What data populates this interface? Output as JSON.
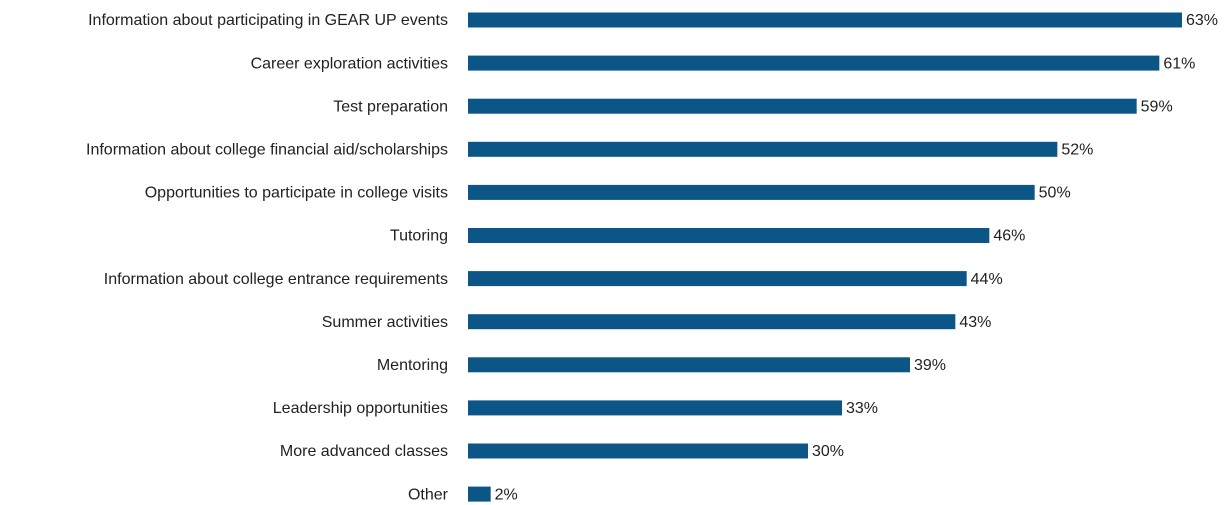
{
  "chart_data": {
    "type": "bar",
    "orientation": "horizontal",
    "categories": [
      "Information about participating in GEAR UP events",
      "Career exploration activities",
      "Test preparation",
      "Information about college financial aid/scholarships",
      "Opportunities to participate in college visits",
      "Tutoring",
      "Information about college entrance requirements",
      "Summer activities",
      "Mentoring",
      "Leadership opportunities",
      "More advanced classes",
      "Other"
    ],
    "values": [
      63,
      61,
      59,
      52,
      50,
      46,
      44,
      43,
      39,
      33,
      30,
      2
    ],
    "value_labels": [
      "63%",
      "61%",
      "59%",
      "52%",
      "50%",
      "46%",
      "44%",
      "43%",
      "39%",
      "33%",
      "30%",
      "2%"
    ],
    "color": "#0b5587"
  }
}
